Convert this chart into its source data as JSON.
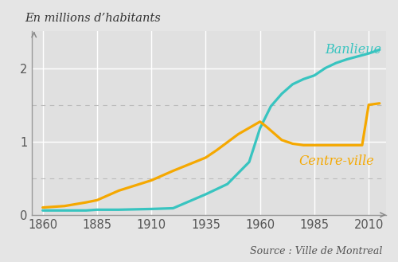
{
  "ylabel": "En millions d’habitants",
  "source": "Source : Ville de Montreal",
  "banlieue_label": "Banlieue",
  "centreville_label": "Centre-ville",
  "banlieue_color": "#38C4C0",
  "centreville_color": "#F5A800",
  "background_color": "#E5E5E5",
  "grid_bg_color": "#E0E0E0",
  "banlieue_x": [
    1860,
    1870,
    1880,
    1885,
    1895,
    1910,
    1920,
    1935,
    1945,
    1955,
    1960,
    1965,
    1970,
    1975,
    1980,
    1985,
    1990,
    1995,
    2000,
    2005,
    2010,
    2015
  ],
  "banlieue_y": [
    0.06,
    0.06,
    0.06,
    0.07,
    0.07,
    0.08,
    0.09,
    0.28,
    0.42,
    0.72,
    1.18,
    1.48,
    1.65,
    1.78,
    1.85,
    1.9,
    2.0,
    2.07,
    2.12,
    2.16,
    2.2,
    2.25
  ],
  "centreville_x": [
    1860,
    1870,
    1880,
    1885,
    1895,
    1910,
    1920,
    1935,
    1940,
    1950,
    1960,
    1963,
    1970,
    1975,
    1980,
    1985,
    1990,
    1995,
    2000,
    2005,
    2007,
    2010,
    2015
  ],
  "centreville_y": [
    0.1,
    0.12,
    0.17,
    0.2,
    0.33,
    0.47,
    0.6,
    0.78,
    0.88,
    1.1,
    1.27,
    1.2,
    1.02,
    0.97,
    0.95,
    0.95,
    0.95,
    0.95,
    0.95,
    0.95,
    0.95,
    1.5,
    1.52
  ],
  "xticks": [
    1860,
    1885,
    1910,
    1935,
    1960,
    1985,
    2010
  ],
  "yticks": [
    0,
    1,
    2
  ],
  "ylim": [
    0,
    2.5
  ],
  "xlim": [
    1855,
    2018
  ]
}
